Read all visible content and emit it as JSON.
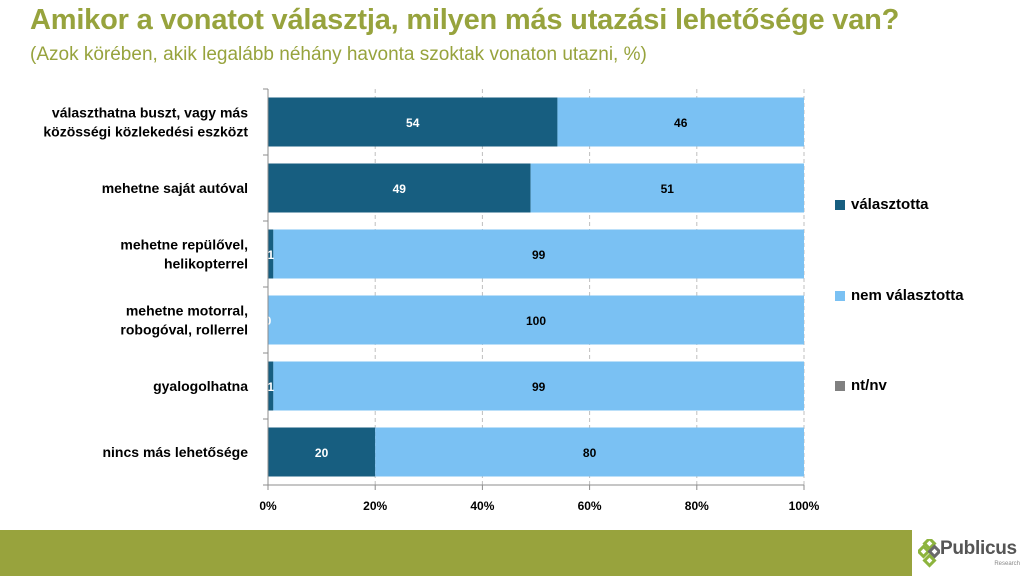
{
  "header": {
    "title": "Amikor a vonatot választja, milyen más utazási lehetősége van?",
    "subtitle": "(Azok körében, akik legalább néhány havonta szoktak vonaton utazni, %)"
  },
  "chart_data": {
    "type": "bar",
    "orientation": "horizontal",
    "stacked": "percent",
    "title": "Amikor a vonatot választja, milyen más utazási lehetősége van?",
    "subtitle": "(Azok körében, akik legalább néhány havonta szoktak vonaton utazni, %)",
    "categories": [
      [
        "választhatna buszt, vagy más",
        "közösségi közlekedési eszközt"
      ],
      [
        "mehetne saját autóval"
      ],
      [
        "mehetne repülővel,",
        "helikopterrel"
      ],
      [
        "mehetne motorral,",
        "robogóval, rollerrel"
      ],
      [
        "gyalogolhatna"
      ],
      [
        "nincs más lehetősége"
      ]
    ],
    "series": [
      {
        "name": "választotta",
        "color": "#175E80",
        "labelColor": "#FFFFFF",
        "values": [
          54,
          49,
          1,
          0,
          1,
          20
        ]
      },
      {
        "name": "nem választotta",
        "color": "#7AC1F3",
        "labelColor": "#000000",
        "values": [
          46,
          51,
          99,
          100,
          99,
          80
        ]
      },
      {
        "name": "nt/nv",
        "color": "#808080",
        "labelColor": "#000000",
        "values": [
          0,
          0,
          0,
          0,
          0,
          0
        ]
      }
    ],
    "xaxis": {
      "ticks": [
        "0%",
        "20%",
        "40%",
        "60%",
        "80%",
        "100%"
      ],
      "range": [
        0,
        100
      ]
    },
    "grid": true,
    "legend_position": "right"
  },
  "footer": {
    "logo_name": "Publicus",
    "logo_sub": "Research",
    "bar_color": "#98A33D"
  }
}
